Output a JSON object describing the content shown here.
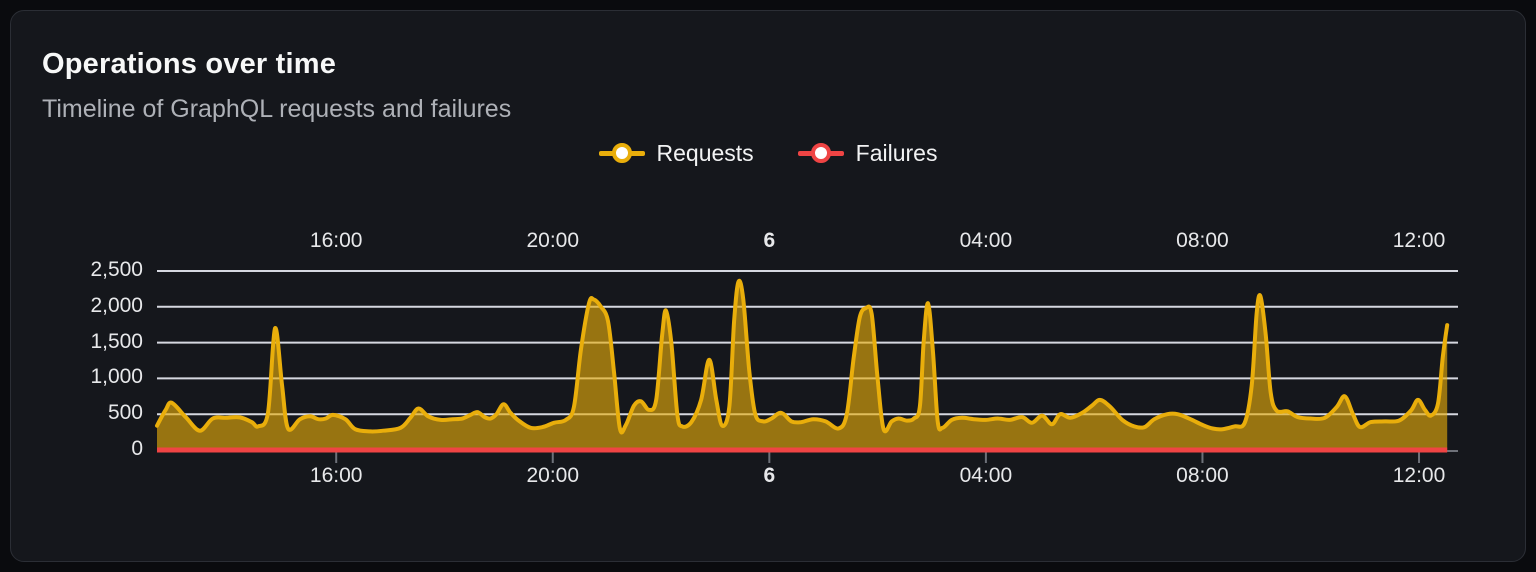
{
  "panel": {
    "title": "Operations over time",
    "subtitle": "Timeline of GraphQL requests and failures"
  },
  "legend": {
    "items": [
      {
        "label": "Requests",
        "color": "#e9ae0b"
      },
      {
        "label": "Failures",
        "color": "#ef4444"
      }
    ]
  },
  "chart_data": {
    "type": "area",
    "title": "Operations over time",
    "subtitle": "Timeline of GraphQL requests and failures",
    "grid": true,
    "legend_position": "top-center",
    "x_axis": {
      "unit": "time",
      "note_hours_after_24_are_next_day": true,
      "min_hour": 12.69,
      "max_hour": 36.72,
      "data_end_hour": 36.52,
      "ticks": [
        {
          "hour": 16,
          "label": "16:00",
          "bold": false
        },
        {
          "hour": 20,
          "label": "20:00",
          "bold": false
        },
        {
          "hour": 24,
          "label": "6",
          "bold": true
        },
        {
          "hour": 28,
          "label": "04:00",
          "bold": false
        },
        {
          "hour": 32,
          "label": "08:00",
          "bold": false
        },
        {
          "hour": 36,
          "label": "12:00",
          "bold": false
        }
      ]
    },
    "y_axis": {
      "min": 0,
      "max": 2500,
      "step": 500,
      "ticks": [
        {
          "value": 0,
          "label": "0"
        },
        {
          "value": 500,
          "label": "500"
        },
        {
          "value": 1000,
          "label": "1,000"
        },
        {
          "value": 1500,
          "label": "1,500"
        },
        {
          "value": 2000,
          "label": "2,000"
        },
        {
          "value": 2500,
          "label": "2,500"
        }
      ]
    },
    "series": [
      {
        "name": "Requests",
        "color": "#e9ae0b",
        "fill_opacity": 0.62,
        "points": [
          [
            12.69,
            340
          ],
          [
            12.85,
            560
          ],
          [
            12.96,
            660
          ],
          [
            13.22,
            460
          ],
          [
            13.48,
            270
          ],
          [
            13.72,
            440
          ],
          [
            13.96,
            450
          ],
          [
            14.22,
            455
          ],
          [
            14.44,
            390
          ],
          [
            14.56,
            330
          ],
          [
            14.74,
            520
          ],
          [
            14.87,
            1700
          ],
          [
            15.0,
            900
          ],
          [
            15.11,
            300
          ],
          [
            15.33,
            430
          ],
          [
            15.52,
            470
          ],
          [
            15.67,
            430
          ],
          [
            15.81,
            440
          ],
          [
            15.94,
            490
          ],
          [
            16.17,
            430
          ],
          [
            16.35,
            290
          ],
          [
            16.63,
            260
          ],
          [
            16.87,
            270
          ],
          [
            17.19,
            310
          ],
          [
            17.37,
            450
          ],
          [
            17.52,
            580
          ],
          [
            17.7,
            470
          ],
          [
            17.93,
            420
          ],
          [
            18.15,
            430
          ],
          [
            18.33,
            440
          ],
          [
            18.48,
            490
          ],
          [
            18.61,
            530
          ],
          [
            18.74,
            460
          ],
          [
            18.85,
            440
          ],
          [
            18.96,
            500
          ],
          [
            19.09,
            640
          ],
          [
            19.22,
            520
          ],
          [
            19.37,
            410
          ],
          [
            19.59,
            310
          ],
          [
            19.81,
            320
          ],
          [
            20.02,
            380
          ],
          [
            20.24,
            420
          ],
          [
            20.39,
            600
          ],
          [
            20.52,
            1400
          ],
          [
            20.67,
            2050
          ],
          [
            20.76,
            2100
          ],
          [
            20.89,
            2000
          ],
          [
            21.02,
            1800
          ],
          [
            21.13,
            1100
          ],
          [
            21.24,
            300
          ],
          [
            21.35,
            350
          ],
          [
            21.5,
            620
          ],
          [
            21.63,
            680
          ],
          [
            21.78,
            560
          ],
          [
            21.91,
            700
          ],
          [
            22.02,
            1600
          ],
          [
            22.09,
            1950
          ],
          [
            22.19,
            1500
          ],
          [
            22.3,
            500
          ],
          [
            22.39,
            330
          ],
          [
            22.56,
            390
          ],
          [
            22.74,
            700
          ],
          [
            22.89,
            1260
          ],
          [
            23.02,
            700
          ],
          [
            23.13,
            340
          ],
          [
            23.26,
            600
          ],
          [
            23.35,
            1800
          ],
          [
            23.43,
            2350
          ],
          [
            23.52,
            2100
          ],
          [
            23.63,
            1100
          ],
          [
            23.74,
            500
          ],
          [
            23.89,
            400
          ],
          [
            24.04,
            440
          ],
          [
            24.22,
            520
          ],
          [
            24.41,
            400
          ],
          [
            24.59,
            390
          ],
          [
            24.81,
            430
          ],
          [
            25.04,
            400
          ],
          [
            25.28,
            300
          ],
          [
            25.43,
            500
          ],
          [
            25.56,
            1300
          ],
          [
            25.67,
            1850
          ],
          [
            25.78,
            1980
          ],
          [
            25.89,
            1900
          ],
          [
            26.0,
            1000
          ],
          [
            26.11,
            290
          ],
          [
            26.26,
            400
          ],
          [
            26.39,
            440
          ],
          [
            26.54,
            410
          ],
          [
            26.67,
            440
          ],
          [
            26.78,
            600
          ],
          [
            26.85,
            1500
          ],
          [
            26.93,
            2050
          ],
          [
            27.02,
            1400
          ],
          [
            27.11,
            400
          ],
          [
            27.2,
            310
          ],
          [
            27.37,
            420
          ],
          [
            27.56,
            450
          ],
          [
            27.78,
            430
          ],
          [
            28.0,
            420
          ],
          [
            28.22,
            440
          ],
          [
            28.44,
            420
          ],
          [
            28.67,
            460
          ],
          [
            28.85,
            380
          ],
          [
            29.04,
            480
          ],
          [
            29.22,
            360
          ],
          [
            29.37,
            500
          ],
          [
            29.56,
            450
          ],
          [
            29.78,
            520
          ],
          [
            29.96,
            620
          ],
          [
            30.11,
            700
          ],
          [
            30.3,
            600
          ],
          [
            30.52,
            420
          ],
          [
            30.74,
            330
          ],
          [
            30.93,
            320
          ],
          [
            31.11,
            430
          ],
          [
            31.35,
            500
          ],
          [
            31.54,
            500
          ],
          [
            31.78,
            430
          ],
          [
            32.0,
            350
          ],
          [
            32.19,
            300
          ],
          [
            32.37,
            290
          ],
          [
            32.59,
            330
          ],
          [
            32.78,
            380
          ],
          [
            32.91,
            900
          ],
          [
            33.0,
            1900
          ],
          [
            33.07,
            2150
          ],
          [
            33.17,
            1600
          ],
          [
            33.26,
            800
          ],
          [
            33.37,
            550
          ],
          [
            33.57,
            540
          ],
          [
            33.76,
            460
          ],
          [
            34.0,
            440
          ],
          [
            34.26,
            450
          ],
          [
            34.48,
            600
          ],
          [
            34.63,
            750
          ],
          [
            34.78,
            500
          ],
          [
            34.91,
            320
          ],
          [
            35.11,
            390
          ],
          [
            35.37,
            400
          ],
          [
            35.63,
            410
          ],
          [
            35.85,
            550
          ],
          [
            35.98,
            700
          ],
          [
            36.11,
            560
          ],
          [
            36.22,
            480
          ],
          [
            36.35,
            650
          ],
          [
            36.44,
            1300
          ],
          [
            36.52,
            1745
          ]
        ]
      },
      {
        "name": "Failures",
        "color": "#ef4444",
        "points": [
          [
            12.69,
            0
          ],
          [
            36.52,
            0
          ]
        ]
      }
    ],
    "colors": {
      "gridline": "#d6d8e0",
      "axis_baseline": "#6e7179",
      "tick_mark": "#6e7179",
      "tick_label": "#e7e8ea"
    }
  }
}
